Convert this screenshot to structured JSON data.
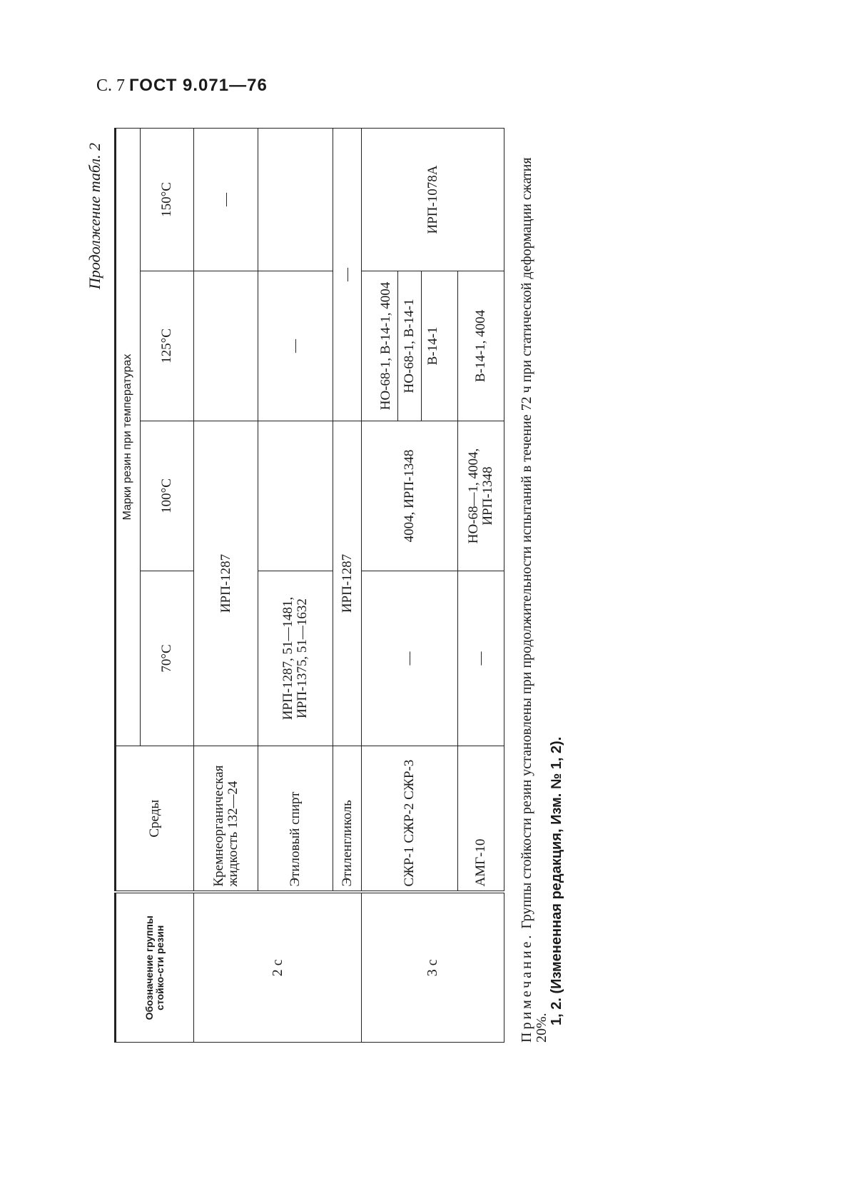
{
  "page_header": {
    "page": "С. 7",
    "standard": "ГОСТ 9.071—76"
  },
  "caption": "Продолжение табл. 2",
  "table": {
    "headers": {
      "group": "Обозначение группы стойко-сти резин",
      "media": "Среды",
      "brands": "Марки резин при температурах",
      "temps": [
        "70°С",
        "100°С",
        "125°С",
        "150°С"
      ]
    },
    "groups": [
      {
        "name": "2 с",
        "rows": [
          {
            "medium": "Кремнеорганическая жидкость 132—24",
            "t70_100": "ИРП-1287",
            "t125": "",
            "t150": "—"
          },
          {
            "medium": "Этиловый спирт",
            "t70": "ИРП-1287, 51—1481, ИРП-1375, 51—1632",
            "t100": "",
            "t125": "—",
            "t150": ""
          },
          {
            "medium": "Этиленгликоль",
            "t70_100": "ИРП-1287",
            "t125_150": "—"
          }
        ]
      },
      {
        "name": "3 с",
        "rows": [
          {
            "medium": "СЖР-1 СЖР-2 СЖР-3",
            "t70": "—",
            "t100": "4004, ИРП-1348",
            "t125": [
              "НО-68-1, В-14-1, 4004",
              "НО-68-1, В-14-1",
              "В-14-1"
            ],
            "t150": "ИРП-1078А"
          },
          {
            "medium": "АМГ-10",
            "t70": "—",
            "t100": "НО-68—1, 4004, ИРП-1348",
            "t125": "В-14-1, 4004"
          }
        ]
      }
    ]
  },
  "note": {
    "label": "Примечание.",
    "text": "Группы стойкости резин установлены при продолжительности испытаний в течение 72 ч при статической деформации сжатия 20%.",
    "revision": "1, 2. (Измененная редакция, Изм. № 1, 2)."
  }
}
